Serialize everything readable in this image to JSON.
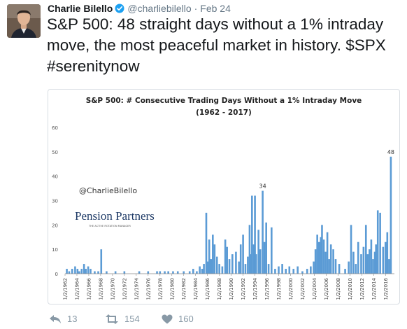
{
  "tweet": {
    "author_name": "Charlie Bilello",
    "handle": "@charliebilello",
    "separator": "·",
    "date": "Feb 24",
    "text": "S&P 500: 48 straight days without a 1% intraday move, the most peaceful market in history. $SPX #serenitynow",
    "icons": {
      "avatar": "avatar-photo",
      "verified": "verified-badge-icon"
    },
    "colors": {
      "verified": "#1da1f2",
      "meta": "#657786",
      "action": "#8899a6"
    }
  },
  "actions": {
    "reply_count": "13",
    "retweet_count": "154",
    "like_count": "160",
    "icons": [
      "reply-icon",
      "retweet-icon",
      "like-icon"
    ]
  },
  "chart": {
    "watermark": "@CharlieBilello",
    "brand": "Pension Partners",
    "brand_tagline": "THE ACTIVE ROTATION MANAGER"
  },
  "chart_data": {
    "type": "bar",
    "title": "S&P 500: # Consecutive Trading Days Without a 1% Intraday Move",
    "subtitle": "(1962 - 2017)",
    "xlabel": "",
    "ylabel": "",
    "ylim": [
      0,
      60
    ],
    "yticks": [
      0,
      10,
      20,
      30,
      40,
      50,
      60
    ],
    "grid": false,
    "color": "#5b9bd5",
    "categories": [
      "1/2/1962",
      "1/2/1964",
      "1/2/1966",
      "1/2/1968",
      "1/2/1970",
      "1/2/1972",
      "1/2/1974",
      "1/2/1976",
      "1/2/1978",
      "1/2/1980",
      "1/2/1982",
      "1/2/1984",
      "1/2/1986",
      "1/2/1988",
      "1/2/1990",
      "1/2/1992",
      "1/2/1994",
      "1/2/1996",
      "1/2/1998",
      "1/2/2000",
      "1/2/2002",
      "1/2/2004",
      "1/2/2006",
      "1/2/2008",
      "1/2/2010",
      "1/2/2012",
      "1/2/2014",
      "1/2/2016"
    ],
    "annotations": [
      {
        "text": "34",
        "x": 1995.3,
        "y": 34
      },
      {
        "text": "48",
        "x": 2016.9,
        "y": 48
      }
    ],
    "x": [
      1962.3,
      1962.7,
      1963.2,
      1963.7,
      1964.1,
      1964.4,
      1964.8,
      1965.2,
      1965.5,
      1965.9,
      1966.3,
      1967.0,
      1967.6,
      1968.1,
      1969.0,
      1970.5,
      1972.0,
      1974.5,
      1976.0,
      1977.5,
      1978.0,
      1978.8,
      1979.4,
      1980.2,
      1981.0,
      1982.0,
      1983.0,
      1983.6,
      1984.2,
      1984.7,
      1985.1,
      1985.4,
      1985.8,
      1986.0,
      1986.3,
      1986.6,
      1986.9,
      1987.2,
      1987.6,
      1988.0,
      1988.5,
      1989.0,
      1989.3,
      1989.7,
      1990.2,
      1990.8,
      1991.3,
      1991.6,
      1992.0,
      1992.4,
      1992.8,
      1993.1,
      1993.3,
      1993.5,
      1993.8,
      1994.0,
      1994.2,
      1994.6,
      1994.9,
      1995.3,
      1995.6,
      1995.9,
      1996.3,
      1996.8,
      1997.4,
      1998.0,
      1998.6,
      1999.2,
      1999.8,
      2000.5,
      2001.2,
      2002.0,
      2002.8,
      2003.4,
      2003.9,
      2004.2,
      2004.5,
      2004.8,
      2005.1,
      2005.3,
      2005.6,
      2005.9,
      2006.2,
      2006.5,
      2006.8,
      2007.2,
      2007.6,
      2008.2,
      2009.2,
      2009.8,
      2010.2,
      2010.6,
      2011.0,
      2011.4,
      2011.9,
      2012.3,
      2012.7,
      2013.0,
      2013.3,
      2013.6,
      2013.9,
      2014.2,
      2014.4,
      2014.7,
      2015.1,
      2015.6,
      2016.0,
      2016.3,
      2016.6,
      2016.9
    ],
    "values": [
      2,
      1,
      2,
      3,
      2,
      1,
      2,
      4,
      2,
      3,
      2,
      1,
      1,
      10,
      1,
      1,
      1,
      1,
      1,
      1,
      1,
      1,
      1,
      1,
      1,
      1,
      1,
      2,
      1,
      3,
      2,
      4,
      25,
      5,
      14,
      6,
      16,
      12,
      7,
      4,
      3,
      14,
      11,
      6,
      8,
      9,
      5,
      12,
      16,
      4,
      7,
      20,
      8,
      32,
      12,
      32,
      8,
      18,
      10,
      34,
      13,
      21,
      4,
      19,
      2,
      3,
      4,
      2,
      3,
      2,
      3,
      1,
      2,
      3,
      5,
      10,
      16,
      13,
      15,
      20,
      14,
      9,
      17,
      6,
      12,
      10,
      6,
      4,
      2,
      5,
      20,
      9,
      4,
      13,
      8,
      11,
      20,
      8,
      10,
      14,
      6,
      9,
      12,
      26,
      25,
      11,
      13,
      17,
      6,
      48
    ]
  }
}
